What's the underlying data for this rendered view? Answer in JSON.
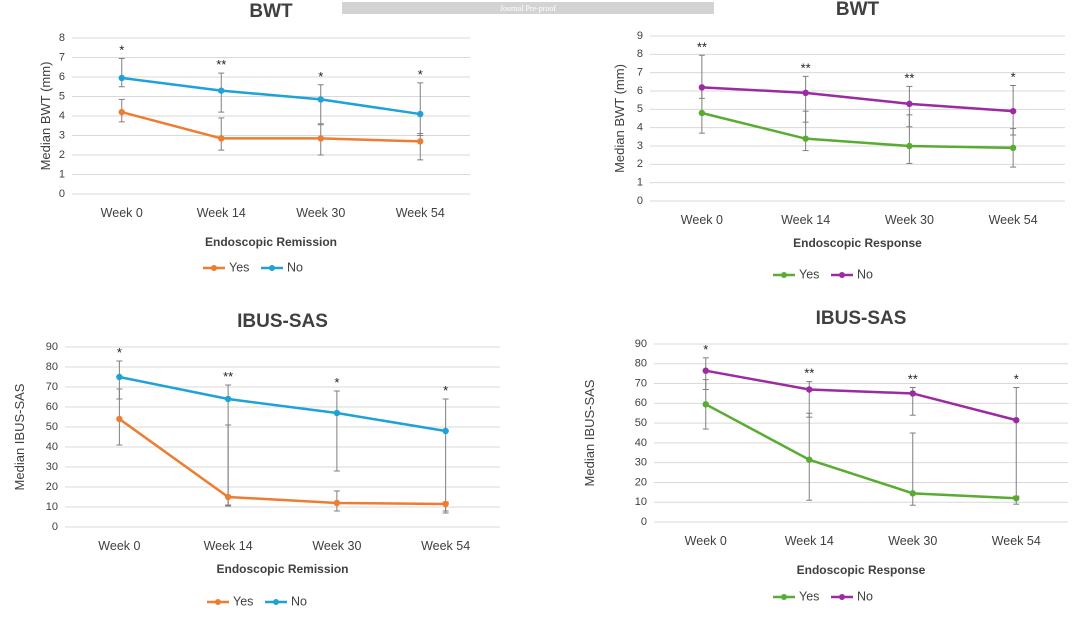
{
  "banner": {
    "text": "Journal Pre-proof"
  },
  "chart_data": [
    {
      "type": "line",
      "title": "BWT",
      "xlabel": "Endoscopic Remission",
      "ylabel": "Median BWT (mm)",
      "categories": [
        "Week 0",
        "Week 14",
        "Week 30",
        "Week 54"
      ],
      "ylim": [
        0,
        8
      ],
      "yticks": [
        0,
        1,
        2,
        3,
        4,
        5,
        6,
        7,
        8
      ],
      "grid": true,
      "legend_position": "bottom",
      "significance": [
        "*",
        "**",
        "*",
        "*"
      ],
      "series": [
        {
          "name": "Yes",
          "color": "#ed7d31",
          "values": [
            4.2,
            2.85,
            2.85,
            2.7
          ],
          "error_low": [
            3.7,
            2.25,
            2.0,
            1.75
          ],
          "error_high": [
            4.85,
            3.9,
            3.55,
            3.1
          ]
        },
        {
          "name": "No",
          "color": "#1fa2d6",
          "values": [
            5.95,
            5.3,
            4.85,
            4.1
          ],
          "error_low": [
            5.5,
            4.2,
            3.6,
            3.0
          ],
          "error_high": [
            6.95,
            6.2,
            5.6,
            5.7
          ]
        }
      ]
    },
    {
      "type": "line",
      "title": "BWT",
      "xlabel": "Endoscopic Response",
      "ylabel": "Median BWT (mm)",
      "categories": [
        "Week 0",
        "Week 14",
        "Week 30",
        "Week 54"
      ],
      "ylim": [
        0,
        9
      ],
      "yticks": [
        0,
        1,
        2,
        3,
        4,
        5,
        6,
        7,
        8,
        9
      ],
      "grid": true,
      "legend_position": "bottom",
      "significance": [
        "**",
        "**",
        "**",
        "*"
      ],
      "series": [
        {
          "name": "Yes",
          "color": "#5aab32",
          "values": [
            4.8,
            3.4,
            3.0,
            2.9
          ],
          "error_low": [
            3.7,
            2.75,
            2.05,
            1.85
          ],
          "error_high": [
            6.15,
            4.9,
            4.7,
            3.95
          ]
        },
        {
          "name": "No",
          "color": "#9c2aa0",
          "values": [
            6.2,
            5.9,
            5.3,
            4.9
          ],
          "error_low": [
            5.6,
            4.3,
            4.05,
            3.6
          ],
          "error_high": [
            7.95,
            6.8,
            6.25,
            6.3
          ]
        }
      ]
    },
    {
      "type": "line",
      "title": "IBUS-SAS",
      "xlabel": "Endoscopic Remission",
      "ylabel": "Median IBUS-SAS",
      "categories": [
        "Week 0",
        "Week 14",
        "Week 30",
        "Week 54"
      ],
      "ylim": [
        0,
        90
      ],
      "yticks": [
        0,
        10,
        20,
        30,
        40,
        50,
        60,
        70,
        80,
        90
      ],
      "grid": true,
      "legend_position": "bottom",
      "significance": [
        "*",
        "**",
        "*",
        "*"
      ],
      "series": [
        {
          "name": "Yes",
          "color": "#ed7d31",
          "values": [
            54,
            15,
            12,
            11.5
          ],
          "error_low": [
            41,
            10.5,
            8,
            7
          ],
          "error_high": [
            69,
            51,
            18,
            12.5
          ]
        },
        {
          "name": "No",
          "color": "#1fa2d6",
          "values": [
            75,
            64,
            57,
            48
          ],
          "error_low": [
            64,
            11,
            28,
            8
          ],
          "error_high": [
            83,
            71,
            68,
            64
          ]
        }
      ]
    },
    {
      "type": "line",
      "title": "IBUS-SAS",
      "xlabel": "Endoscopic Response",
      "ylabel": "Median IBUS-SAS",
      "categories": [
        "Week 0",
        "Week 14",
        "Week 30",
        "Week 54"
      ],
      "ylim": [
        0,
        90
      ],
      "yticks": [
        0,
        10,
        20,
        30,
        40,
        50,
        60,
        70,
        80,
        90
      ],
      "grid": true,
      "legend_position": "bottom",
      "significance": [
        "*",
        "**",
        "**",
        "*"
      ],
      "series": [
        {
          "name": "Yes",
          "color": "#5aab32",
          "values": [
            59.5,
            31.5,
            14.5,
            12
          ],
          "error_low": [
            47,
            11,
            8.5,
            9
          ],
          "error_high": [
            72,
            55,
            45,
            13
          ]
        },
        {
          "name": "No",
          "color": "#9c2aa0",
          "values": [
            76.5,
            67,
            65,
            51.5
          ],
          "error_low": [
            67,
            53,
            54,
            13
          ],
          "error_high": [
            83,
            71,
            68,
            68
          ]
        }
      ]
    }
  ]
}
